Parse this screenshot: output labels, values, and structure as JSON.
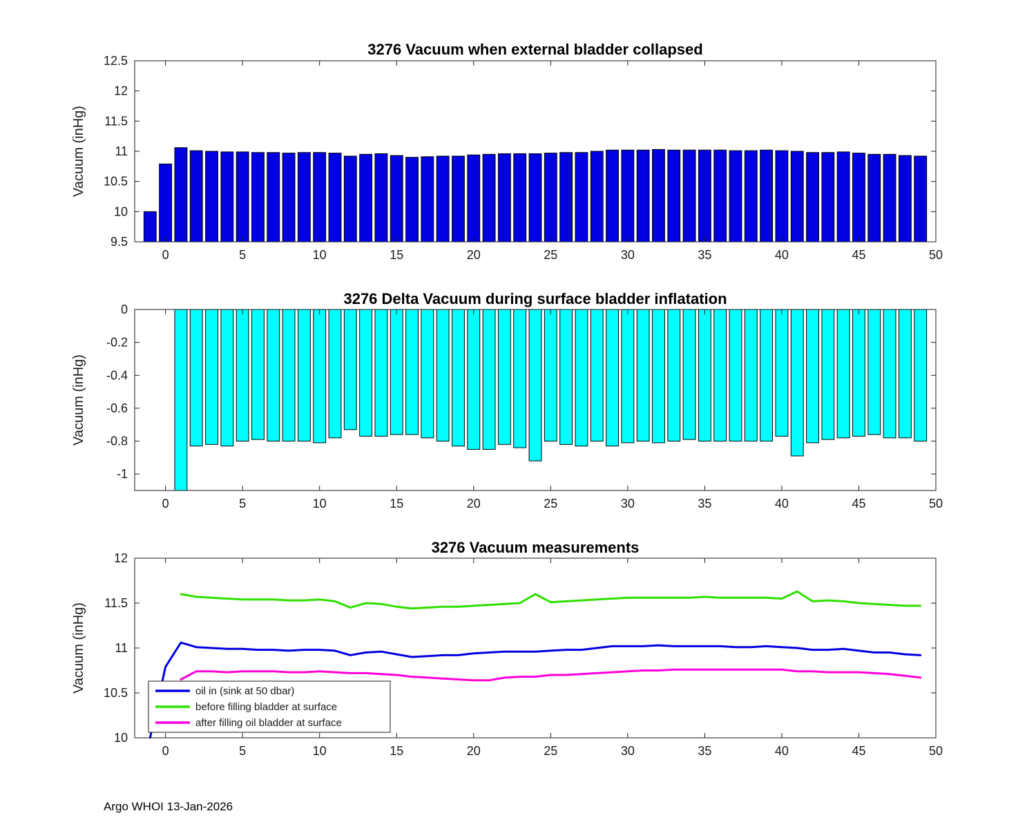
{
  "footer": {
    "credit": "Argo WHOI 13-Jan-2026"
  },
  "chart_data": [
    {
      "type": "bar",
      "title": "3276 Vacuum when external bladder collapsed",
      "ylabel": "Vacuum (inHg)",
      "color": "#0000e1",
      "bar_width": 0.8,
      "bar_base": 9.5,
      "xlim": [
        -2,
        50
      ],
      "ylim": [
        9.5,
        12.5
      ],
      "xtick_values": [
        0,
        5,
        10,
        15,
        20,
        25,
        30,
        35,
        40,
        45,
        50
      ],
      "xtick_labels": [
        "0",
        "5",
        "10",
        "15",
        "20",
        "25",
        "30",
        "35",
        "40",
        "45",
        "50"
      ],
      "ytick_values": [
        9.5,
        10,
        10.5,
        11,
        11.5,
        12,
        12.5
      ],
      "ytick_labels": [
        "9.5",
        "10",
        "10.5",
        "11",
        "11.5",
        "12",
        "12.5"
      ],
      "x": [
        -1,
        0,
        1,
        2,
        3,
        4,
        5,
        6,
        7,
        8,
        9,
        10,
        11,
        12,
        13,
        14,
        15,
        16,
        17,
        18,
        19,
        20,
        21,
        22,
        23,
        24,
        25,
        26,
        27,
        28,
        29,
        30,
        31,
        32,
        33,
        34,
        35,
        36,
        37,
        38,
        39,
        40,
        41,
        42,
        43,
        44,
        45,
        46,
        47,
        48,
        49
      ],
      "values": [
        10.0,
        10.79,
        11.06,
        11.01,
        11.0,
        10.99,
        10.99,
        10.98,
        10.98,
        10.97,
        10.98,
        10.98,
        10.97,
        10.92,
        10.95,
        10.96,
        10.93,
        10.9,
        10.91,
        10.92,
        10.92,
        10.94,
        10.95,
        10.96,
        10.96,
        10.96,
        10.97,
        10.98,
        10.98,
        11.0,
        11.02,
        11.02,
        11.02,
        11.03,
        11.02,
        11.02,
        11.02,
        11.02,
        11.01,
        11.01,
        11.02,
        11.01,
        11.0,
        10.98,
        10.98,
        10.99,
        10.97,
        10.95,
        10.95,
        10.93,
        10.92
      ]
    },
    {
      "type": "bar",
      "title": "3276 Delta Vacuum during surface bladder inflatation",
      "ylabel": "Vacuum (inHg)",
      "color": "#00ffff",
      "bar_width": 0.8,
      "bar_base": 0,
      "xlim": [
        -2,
        50
      ],
      "ylim": [
        -1.1,
        0
      ],
      "xtick_values": [
        0,
        5,
        10,
        15,
        20,
        25,
        30,
        35,
        40,
        45,
        50
      ],
      "xtick_labels": [
        "0",
        "5",
        "10",
        "15",
        "20",
        "25",
        "30",
        "35",
        "40",
        "45",
        "50"
      ],
      "ytick_values": [
        -1,
        -0.8,
        -0.6,
        -0.4,
        -0.2,
        0
      ],
      "ytick_labels": [
        "-1",
        "-0.8",
        "-0.6",
        "-0.4",
        "-0.2",
        "0"
      ],
      "x": [
        1,
        2,
        3,
        4,
        5,
        6,
        7,
        8,
        9,
        10,
        11,
        12,
        13,
        14,
        15,
        16,
        17,
        18,
        19,
        20,
        21,
        22,
        23,
        24,
        25,
        26,
        27,
        28,
        29,
        30,
        31,
        32,
        33,
        34,
        35,
        36,
        37,
        38,
        39,
        40,
        41,
        42,
        43,
        44,
        45,
        46,
        47,
        48,
        49
      ],
      "values": [
        -1.1,
        -0.83,
        -0.82,
        -0.83,
        -0.8,
        -0.79,
        -0.8,
        -0.8,
        -0.8,
        -0.81,
        -0.78,
        -0.73,
        -0.77,
        -0.77,
        -0.76,
        -0.76,
        -0.78,
        -0.8,
        -0.83,
        -0.85,
        -0.85,
        -0.82,
        -0.84,
        -0.92,
        -0.8,
        -0.82,
        -0.83,
        -0.8,
        -0.83,
        -0.81,
        -0.8,
        -0.81,
        -0.8,
        -0.79,
        -0.8,
        -0.8,
        -0.8,
        -0.8,
        -0.8,
        -0.77,
        -0.89,
        -0.81,
        -0.79,
        -0.78,
        -0.77,
        -0.76,
        -0.78,
        -0.78,
        -0.8
      ]
    },
    {
      "type": "line",
      "title": "3276 Vacuum measurements",
      "ylabel": "Vacuum (inHg)",
      "xlim": [
        -2,
        50
      ],
      "ylim": [
        10,
        12
      ],
      "xtick_values": [
        0,
        5,
        10,
        15,
        20,
        25,
        30,
        35,
        40,
        45,
        50
      ],
      "xtick_labels": [
        "0",
        "5",
        "10",
        "15",
        "20",
        "25",
        "30",
        "35",
        "40",
        "45",
        "50"
      ],
      "ytick_values": [
        10,
        10.5,
        11,
        11.5,
        12
      ],
      "ytick_labels": [
        "10",
        "10.5",
        "11",
        "11.5",
        "12"
      ],
      "legend_position": "bottom-left",
      "series": [
        {
          "name": "oil in (sink at 50 dbar)",
          "color": "#0000e1",
          "x": [
            -1,
            0,
            1,
            2,
            3,
            4,
            5,
            6,
            7,
            8,
            9,
            10,
            11,
            12,
            13,
            14,
            15,
            16,
            17,
            18,
            19,
            20,
            21,
            22,
            23,
            24,
            25,
            26,
            27,
            28,
            29,
            30,
            31,
            32,
            33,
            34,
            35,
            36,
            37,
            38,
            39,
            40,
            41,
            42,
            43,
            44,
            45,
            46,
            47,
            48,
            49
          ],
          "values": [
            10.0,
            10.79,
            11.06,
            11.01,
            11.0,
            10.99,
            10.99,
            10.98,
            10.98,
            10.97,
            10.98,
            10.98,
            10.97,
            10.92,
            10.95,
            10.96,
            10.93,
            10.9,
            10.91,
            10.92,
            10.92,
            10.94,
            10.95,
            10.96,
            10.96,
            10.96,
            10.97,
            10.98,
            10.98,
            11.0,
            11.02,
            11.02,
            11.02,
            11.03,
            11.02,
            11.02,
            11.02,
            11.02,
            11.01,
            11.01,
            11.02,
            11.01,
            11.0,
            10.98,
            10.98,
            10.99,
            10.97,
            10.95,
            10.95,
            10.93,
            10.92
          ]
        },
        {
          "name": "before filling bladder at surface",
          "color": "#2ee000",
          "x": [
            1,
            2,
            3,
            4,
            5,
            6,
            7,
            8,
            9,
            10,
            11,
            12,
            13,
            14,
            15,
            16,
            17,
            18,
            19,
            20,
            21,
            22,
            23,
            24,
            25,
            26,
            27,
            28,
            29,
            30,
            31,
            32,
            33,
            34,
            35,
            36,
            37,
            38,
            39,
            40,
            41,
            42,
            43,
            44,
            45,
            46,
            47,
            48,
            49
          ],
          "values": [
            11.6,
            11.57,
            11.56,
            11.55,
            11.54,
            11.54,
            11.54,
            11.53,
            11.53,
            11.54,
            11.52,
            11.45,
            11.5,
            11.49,
            11.46,
            11.44,
            11.45,
            11.46,
            11.46,
            11.47,
            11.48,
            11.49,
            11.5,
            11.6,
            11.51,
            11.52,
            11.53,
            11.54,
            11.55,
            11.56,
            11.56,
            11.56,
            11.56,
            11.56,
            11.57,
            11.56,
            11.56,
            11.56,
            11.56,
            11.55,
            11.63,
            11.52,
            11.53,
            11.52,
            11.5,
            11.49,
            11.48,
            11.47,
            11.47
          ]
        },
        {
          "name": "after filling oil bladder at surface",
          "color": "#ff00dc",
          "x": [
            1,
            2,
            3,
            4,
            5,
            6,
            7,
            8,
            9,
            10,
            11,
            12,
            13,
            14,
            15,
            16,
            17,
            18,
            19,
            20,
            21,
            22,
            23,
            24,
            25,
            26,
            27,
            28,
            29,
            30,
            31,
            32,
            33,
            34,
            35,
            36,
            37,
            38,
            39,
            40,
            41,
            42,
            43,
            44,
            45,
            46,
            47,
            48,
            49
          ],
          "values": [
            10.65,
            10.74,
            10.74,
            10.73,
            10.74,
            10.74,
            10.74,
            10.73,
            10.73,
            10.74,
            10.73,
            10.72,
            10.72,
            10.71,
            10.7,
            10.68,
            10.67,
            10.66,
            10.65,
            10.64,
            10.64,
            10.67,
            10.68,
            10.68,
            10.7,
            10.7,
            10.71,
            10.72,
            10.73,
            10.74,
            10.75,
            10.75,
            10.76,
            10.76,
            10.76,
            10.76,
            10.76,
            10.76,
            10.76,
            10.76,
            10.74,
            10.74,
            10.73,
            10.73,
            10.73,
            10.72,
            10.71,
            10.69,
            10.67
          ]
        }
      ]
    }
  ]
}
